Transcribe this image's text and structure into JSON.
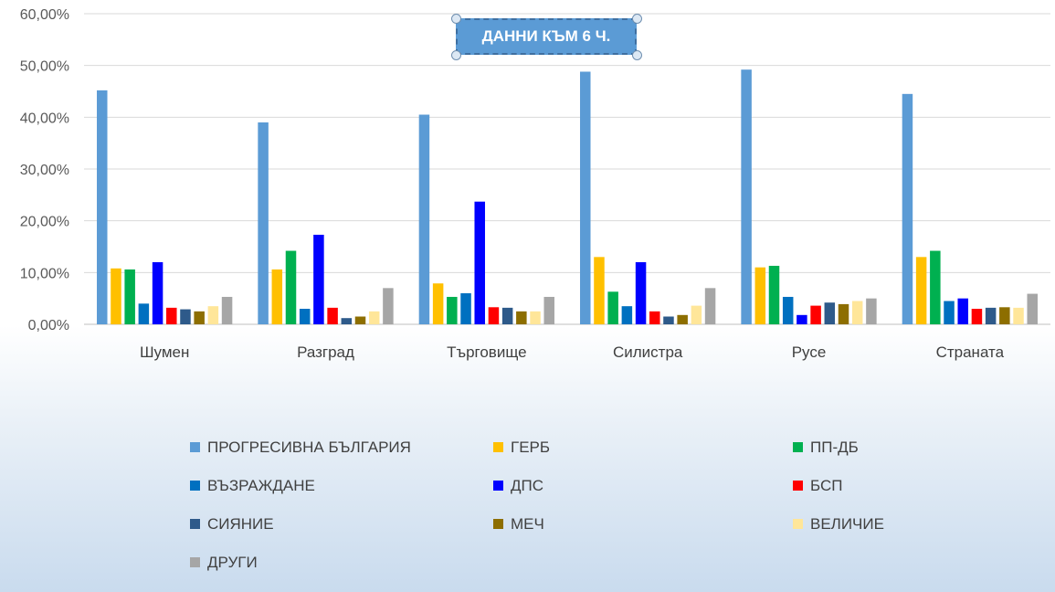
{
  "chart_data": {
    "type": "bar",
    "title": "ДАННИ КЪМ 6 Ч.",
    "categories": [
      "Шумен",
      "Разград",
      "Търговище",
      "Силистра",
      "Русе",
      "Страната"
    ],
    "ylim": [
      0,
      60
    ],
    "y_tick_labels": [
      "0,00%",
      "10,00%",
      "20,00%",
      "30,00%",
      "40,00%",
      "50,00%",
      "60,00%"
    ],
    "y_ticks": [
      0,
      10,
      20,
      30,
      40,
      50,
      60
    ],
    "grid": true,
    "legend_position": "bottom",
    "series": [
      {
        "name": "ПРОГРЕСИВНА БЪЛГАРИЯ",
        "color": "#5b9bd5",
        "values": [
          45.2,
          39.0,
          40.5,
          48.8,
          49.2,
          44.5
        ]
      },
      {
        "name": "ГЕРБ",
        "color": "#ffc000",
        "values": [
          10.8,
          10.6,
          7.9,
          13.0,
          11.0,
          13.0
        ]
      },
      {
        "name": "ПП-ДБ",
        "color": "#00b050",
        "values": [
          10.6,
          14.2,
          5.3,
          6.3,
          11.3,
          14.2
        ]
      },
      {
        "name": "ВЪЗРАЖДАНЕ",
        "color": "#0070c0",
        "values": [
          4.0,
          3.0,
          6.0,
          3.5,
          5.3,
          4.5
        ]
      },
      {
        "name": "ДПС",
        "color": "#0000ff",
        "values": [
          12.0,
          17.3,
          23.7,
          12.0,
          1.8,
          5.0
        ]
      },
      {
        "name": "БСП",
        "color": "#ff0000",
        "values": [
          3.2,
          3.2,
          3.3,
          2.5,
          3.6,
          3.0
        ]
      },
      {
        "name": "СИЯНИЕ",
        "color": "#2e5a8a",
        "values": [
          2.9,
          1.2,
          3.2,
          1.5,
          4.2,
          3.2
        ]
      },
      {
        "name": "МЕЧ",
        "color": "#8d6e00",
        "values": [
          2.5,
          1.5,
          2.5,
          1.8,
          3.9,
          3.3
        ]
      },
      {
        "name": "ВЕЛИЧИЕ",
        "color": "#ffe699",
        "values": [
          3.5,
          2.5,
          2.5,
          3.6,
          4.5,
          3.2
        ]
      },
      {
        "name": "ДРУГИ",
        "color": "#a6a6a6",
        "values": [
          5.3,
          7.0,
          5.3,
          7.0,
          5.0,
          5.9
        ]
      }
    ]
  }
}
